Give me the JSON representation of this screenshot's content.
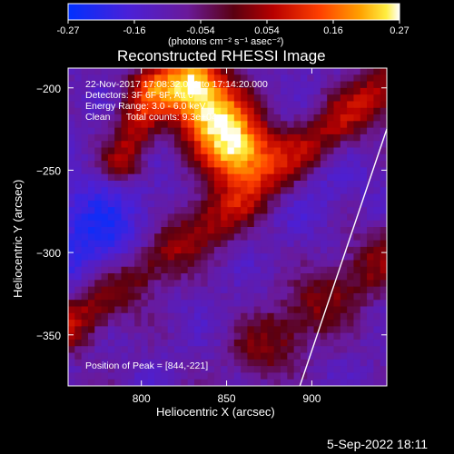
{
  "colorbar": {
    "ticks": [
      "-0.27",
      "-0.16",
      "-0.054",
      "0.054",
      "0.16",
      "0.27"
    ],
    "unit_label": "(photons cm⁻² s⁻¹ asec⁻²)",
    "range": [
      -0.27,
      0.27
    ],
    "colormap": "blue-purple-red-yellow-white"
  },
  "title": "Reconstructed RHESSI Image",
  "annotations": {
    "time": "22-Nov-2017 17:08:32.000 to 17:14:20.000",
    "detectors": "Detectors: 3F 6F 8F, Att 0",
    "energy": "Energy Range: 3.0 - 6.0 keV",
    "clean": "Clean      Total counts: 9.3e+04",
    "peak": "Position of Peak = [844,-221]"
  },
  "footer": {
    "timestamp": "5-Sep-2022 18:11"
  },
  "chart_data": {
    "type": "heatmap",
    "title": "Reconstructed RHESSI Image",
    "xlabel": "Heliocentric X (arcsec)",
    "ylabel": "Heliocentric Y (arcsec)",
    "xlim": [
      757,
      944
    ],
    "ylim": [
      -381,
      -188
    ],
    "x_ticks": [
      800,
      850,
      900
    ],
    "y_ticks": [
      -200,
      -250,
      -300,
      -350
    ],
    "x_tick_labels": [
      "800",
      "850",
      "900"
    ],
    "y_tick_labels": [
      "−200",
      "−250",
      "−300",
      "−350"
    ],
    "value_range": [
      -0.27,
      0.27
    ],
    "peak_position": [
      844,
      -221
    ],
    "features": [
      {
        "name": "bright source",
        "x": [
          800,
          870
        ],
        "y": [
          -190,
          -250
        ],
        "level": "high"
      },
      {
        "name": "diagonal ridge",
        "x": [
          757,
          944
        ],
        "y": [
          -340,
          -200
        ],
        "level": "medium"
      },
      {
        "name": "lower band",
        "x": [
          830,
          944
        ],
        "y": [
          -381,
          -310
        ],
        "level": "medium"
      }
    ],
    "limb_line": {
      "x": [
        893,
        944
      ],
      "y": [
        -381,
        -225
      ]
    }
  }
}
